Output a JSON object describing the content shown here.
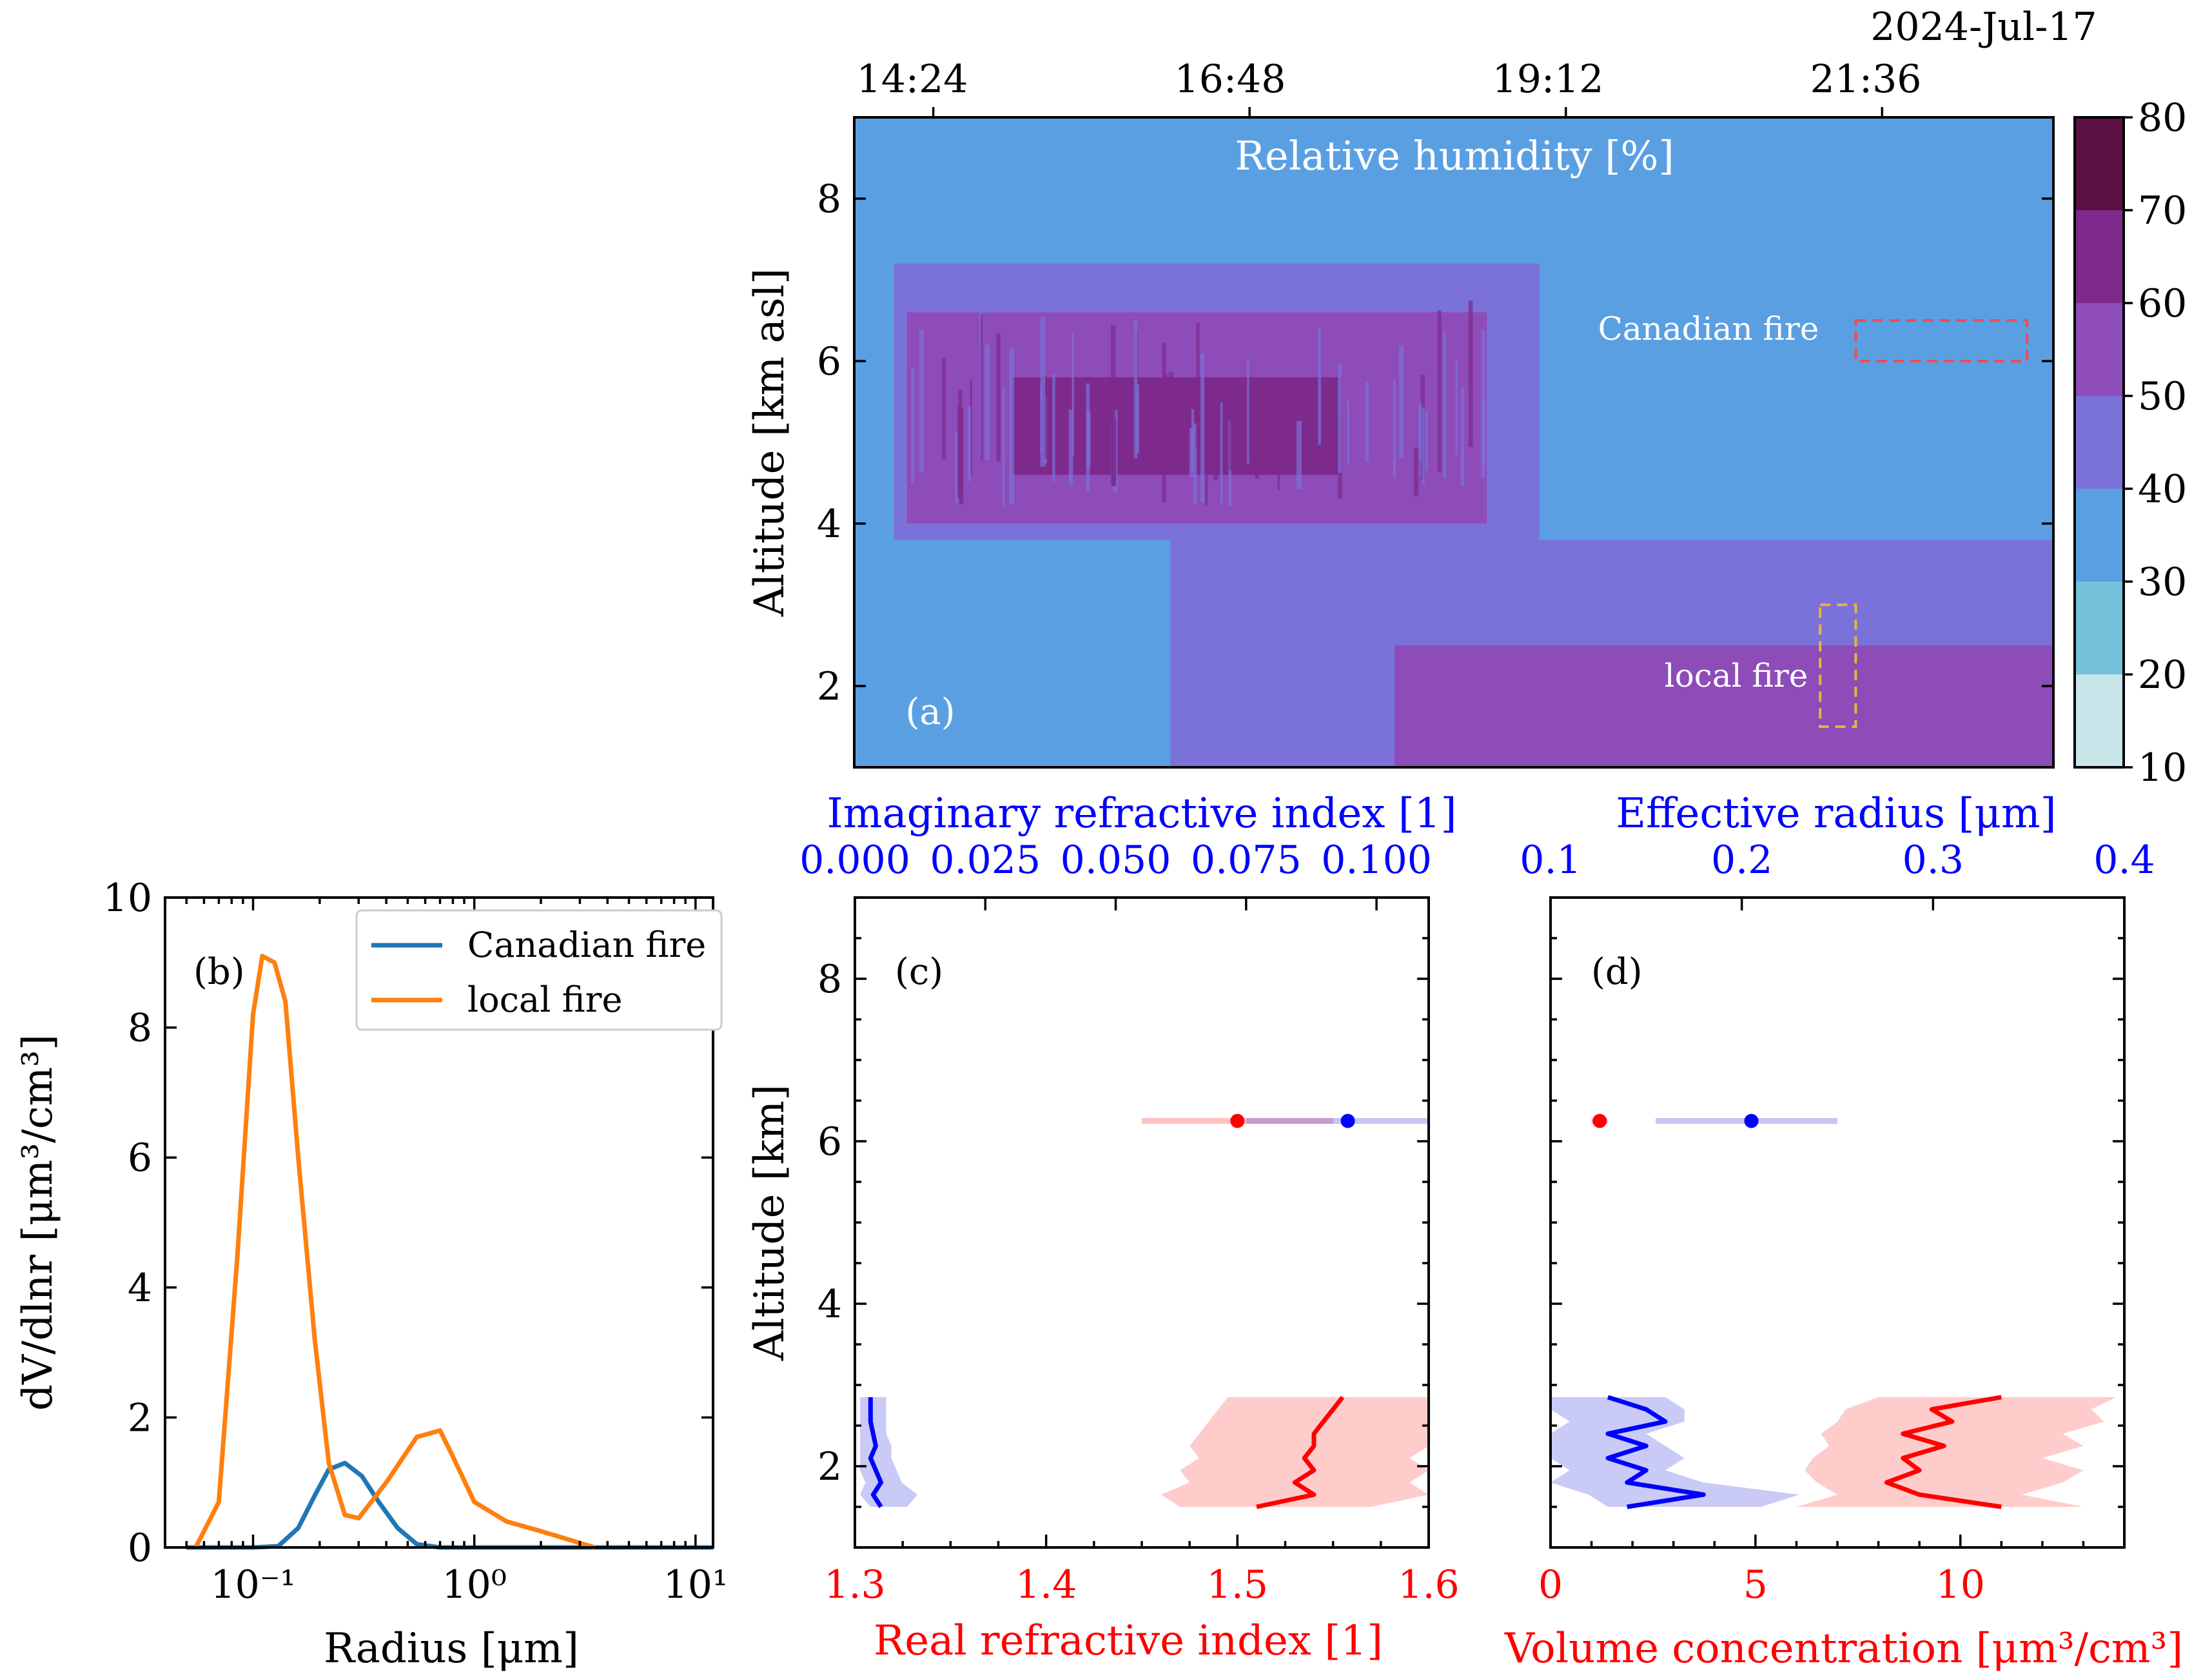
{
  "chart_data": [
    {
      "panel": "(a)",
      "type": "heatmap",
      "title": "Relative humidity [%]",
      "date_label": "2024-Jul-17",
      "x_ticks": [
        "14:24",
        "16:48",
        "19:12",
        "21:36"
      ],
      "x_tick_values_hours": [
        14.4,
        16.8,
        19.2,
        21.6
      ],
      "xlim_hours": [
        13.8,
        22.9
      ],
      "ylabel": "Altitude [km asl]",
      "ylim": [
        1.0,
        9.0
      ],
      "y_ticks": [
        2,
        4,
        6,
        8
      ],
      "colorbar": {
        "levels": [
          10,
          20,
          30,
          40,
          50,
          60,
          70,
          80
        ],
        "colors": [
          "#c8e6ea",
          "#74c3da",
          "#5b9fe3",
          "#7b72d9",
          "#8d4cb8",
          "#7d2a8c",
          "#5a1040"
        ]
      },
      "annotations": [
        {
          "text": "Canadian fire",
          "box_hours": [
            21.4,
            22.7
          ],
          "box_km": [
            6.0,
            6.5
          ],
          "color": "#f24b4b"
        },
        {
          "text": "local fire",
          "box_hours": [
            21.13,
            21.4
          ],
          "box_km": [
            1.5,
            3.0
          ],
          "color": "#e8b43a"
        }
      ],
      "regions_rh": [
        {
          "hours": [
            13.8,
            22.9
          ],
          "km": [
            1.0,
            9.0
          ],
          "rh": 35
        },
        {
          "hours": [
            14.1,
            19.0
          ],
          "km": [
            3.8,
            7.2
          ],
          "rh": 45
        },
        {
          "hours": [
            14.2,
            18.6
          ],
          "km": [
            4.0,
            6.6
          ],
          "rh": 55
        },
        {
          "hours": [
            15.0,
            17.5
          ],
          "km": [
            4.6,
            5.8
          ],
          "rh": 65
        },
        {
          "hours": [
            16.2,
            22.9
          ],
          "km": [
            1.0,
            3.8
          ],
          "rh": 45
        },
        {
          "hours": [
            17.9,
            22.9
          ],
          "km": [
            1.0,
            2.5
          ],
          "rh": 55
        }
      ],
      "panel_label": "(a)"
    },
    {
      "panel": "(b)",
      "type": "line",
      "xlabel": "Radius [μm]",
      "ylabel": "dV/dlnr [μm³/cm³]",
      "x_scale": "log",
      "xlim": [
        0.04,
        12
      ],
      "ylim": [
        0,
        10
      ],
      "x_ticks": [
        "10⁻¹",
        "10⁰",
        "10¹"
      ],
      "y_ticks": [
        0,
        2,
        4,
        6,
        8,
        10
      ],
      "legend_position": "top-right",
      "series": [
        {
          "name": "Canadian fire",
          "color": "#1f77b4",
          "x": [
            0.05,
            0.1,
            0.13,
            0.16,
            0.19,
            0.22,
            0.26,
            0.31,
            0.37,
            0.45,
            0.55,
            0.7,
            1.0,
            2.0,
            12
          ],
          "y": [
            0,
            0,
            0.02,
            0.3,
            0.8,
            1.2,
            1.3,
            1.1,
            0.7,
            0.3,
            0.05,
            0,
            0,
            0,
            0
          ]
        },
        {
          "name": "local fire",
          "color": "#ff7f0e",
          "x": [
            0.055,
            0.07,
            0.085,
            0.1,
            0.11,
            0.125,
            0.14,
            0.16,
            0.19,
            0.22,
            0.26,
            0.3,
            0.4,
            0.55,
            0.7,
            0.8,
            1.0,
            1.4,
            2.0,
            3.5
          ],
          "y": [
            0,
            0.7,
            4.5,
            8.2,
            9.1,
            9.0,
            8.4,
            6.0,
            3.2,
            1.3,
            0.5,
            0.45,
            1.0,
            1.7,
            1.8,
            1.4,
            0.7,
            0.4,
            0.25,
            0
          ]
        }
      ],
      "panel_label": "(b)"
    },
    {
      "panel": "(c)",
      "type": "line",
      "xlabel": "Real refractive index [1]",
      "xlabel_top": "Imaginary refractive index [1]",
      "ylabel": "Altitude [km]",
      "xlim": [
        1.3,
        1.6
      ],
      "xlim_top": [
        0.0,
        0.11
      ],
      "ylim": [
        1.0,
        9.0
      ],
      "x_ticks": [
        "1.3",
        "1.4",
        "1.5",
        "1.6"
      ],
      "x_ticks_top": [
        "0.000",
        "0.025",
        "0.050",
        "0.075",
        "0.100"
      ],
      "y_ticks": [
        2,
        4,
        6,
        8
      ],
      "canadian_points": {
        "real": {
          "value": 1.5,
          "err": [
            1.45,
            1.55
          ],
          "altitude": 6.25,
          "color": "#ff0000"
        },
        "imag": {
          "value": 0.0945,
          "err": [
            0.075,
            0.11
          ],
          "altitude": 6.25,
          "color": "#0000ff"
        }
      },
      "profiles": {
        "altitude": [
          1.5,
          1.65,
          1.8,
          1.95,
          2.1,
          2.25,
          2.4,
          2.55,
          2.7,
          2.85
        ],
        "real": [
          1.51,
          1.54,
          1.53,
          1.54,
          1.535,
          1.54,
          1.54,
          1.545,
          1.55,
          1.555
        ],
        "real_band_low": [
          1.47,
          1.46,
          1.475,
          1.47,
          1.48,
          1.475,
          1.48,
          1.485,
          1.49,
          1.495
        ],
        "real_band_high": [
          1.57,
          1.6,
          1.59,
          1.6,
          1.59,
          1.6,
          1.6,
          1.6,
          1.6,
          1.6
        ],
        "imag": [
          0.005,
          0.0035,
          0.005,
          0.004,
          0.003,
          0.004,
          0.0035,
          0.003,
          0.003,
          0.003
        ],
        "imag_band_low": [
          0.003,
          0.001,
          0.002,
          0.001,
          0.001,
          0.001,
          0.001,
          0.001,
          0.001,
          0.001
        ],
        "imag_band_high": [
          0.01,
          0.012,
          0.009,
          0.008,
          0.007,
          0.007,
          0.006,
          0.006,
          0.006,
          0.006
        ]
      },
      "panel_label": "(c)"
    },
    {
      "panel": "(d)",
      "type": "line",
      "xlabel": "Volume concentration [μm³/cm³]",
      "xlabel_top": "Effective radius [μm]",
      "xlim": [
        0,
        14
      ],
      "xlim_top": [
        0.1,
        0.4
      ],
      "ylim": [
        1.0,
        9.0
      ],
      "x_ticks": [
        "0",
        "5",
        "10"
      ],
      "x_ticks_top": [
        "0.1",
        "0.2",
        "0.3",
        "0.4"
      ],
      "y_ticks": [
        2,
        4,
        6,
        8
      ],
      "canadian_points": {
        "volume": {
          "value": 1.2,
          "err": [
            1.0,
            1.4
          ],
          "altitude": 6.25,
          "color": "#ff0000"
        },
        "reff": {
          "value": 0.205,
          "err": [
            0.155,
            0.25
          ],
          "altitude": 6.25,
          "color": "#0000ff"
        }
      },
      "profiles": {
        "altitude": [
          1.5,
          1.65,
          1.8,
          1.95,
          2.1,
          2.25,
          2.4,
          2.55,
          2.7,
          2.85
        ],
        "volume": [
          11.0,
          9.0,
          8.2,
          9.0,
          8.6,
          9.6,
          8.6,
          9.8,
          9.3,
          11.0
        ],
        "volume_band_low": [
          6.0,
          7.0,
          6.5,
          6.2,
          6.4,
          6.8,
          6.6,
          7.0,
          7.2,
          8.0
        ],
        "volume_band_high": [
          13.0,
          11.5,
          12.5,
          13.0,
          12.0,
          13.0,
          12.5,
          13.5,
          13.2,
          13.8
        ],
        "reff": [
          0.14,
          0.18,
          0.14,
          0.15,
          0.13,
          0.15,
          0.13,
          0.16,
          0.15,
          0.13
        ],
        "reff_band_low": [
          0.13,
          0.12,
          0.1,
          0.11,
          0.1,
          0.1,
          0.1,
          0.11,
          0.1,
          0.1
        ],
        "reff_band_high": [
          0.21,
          0.23,
          0.18,
          0.16,
          0.17,
          0.16,
          0.15,
          0.17,
          0.17,
          0.16
        ]
      },
      "panel_label": "(d)"
    }
  ]
}
